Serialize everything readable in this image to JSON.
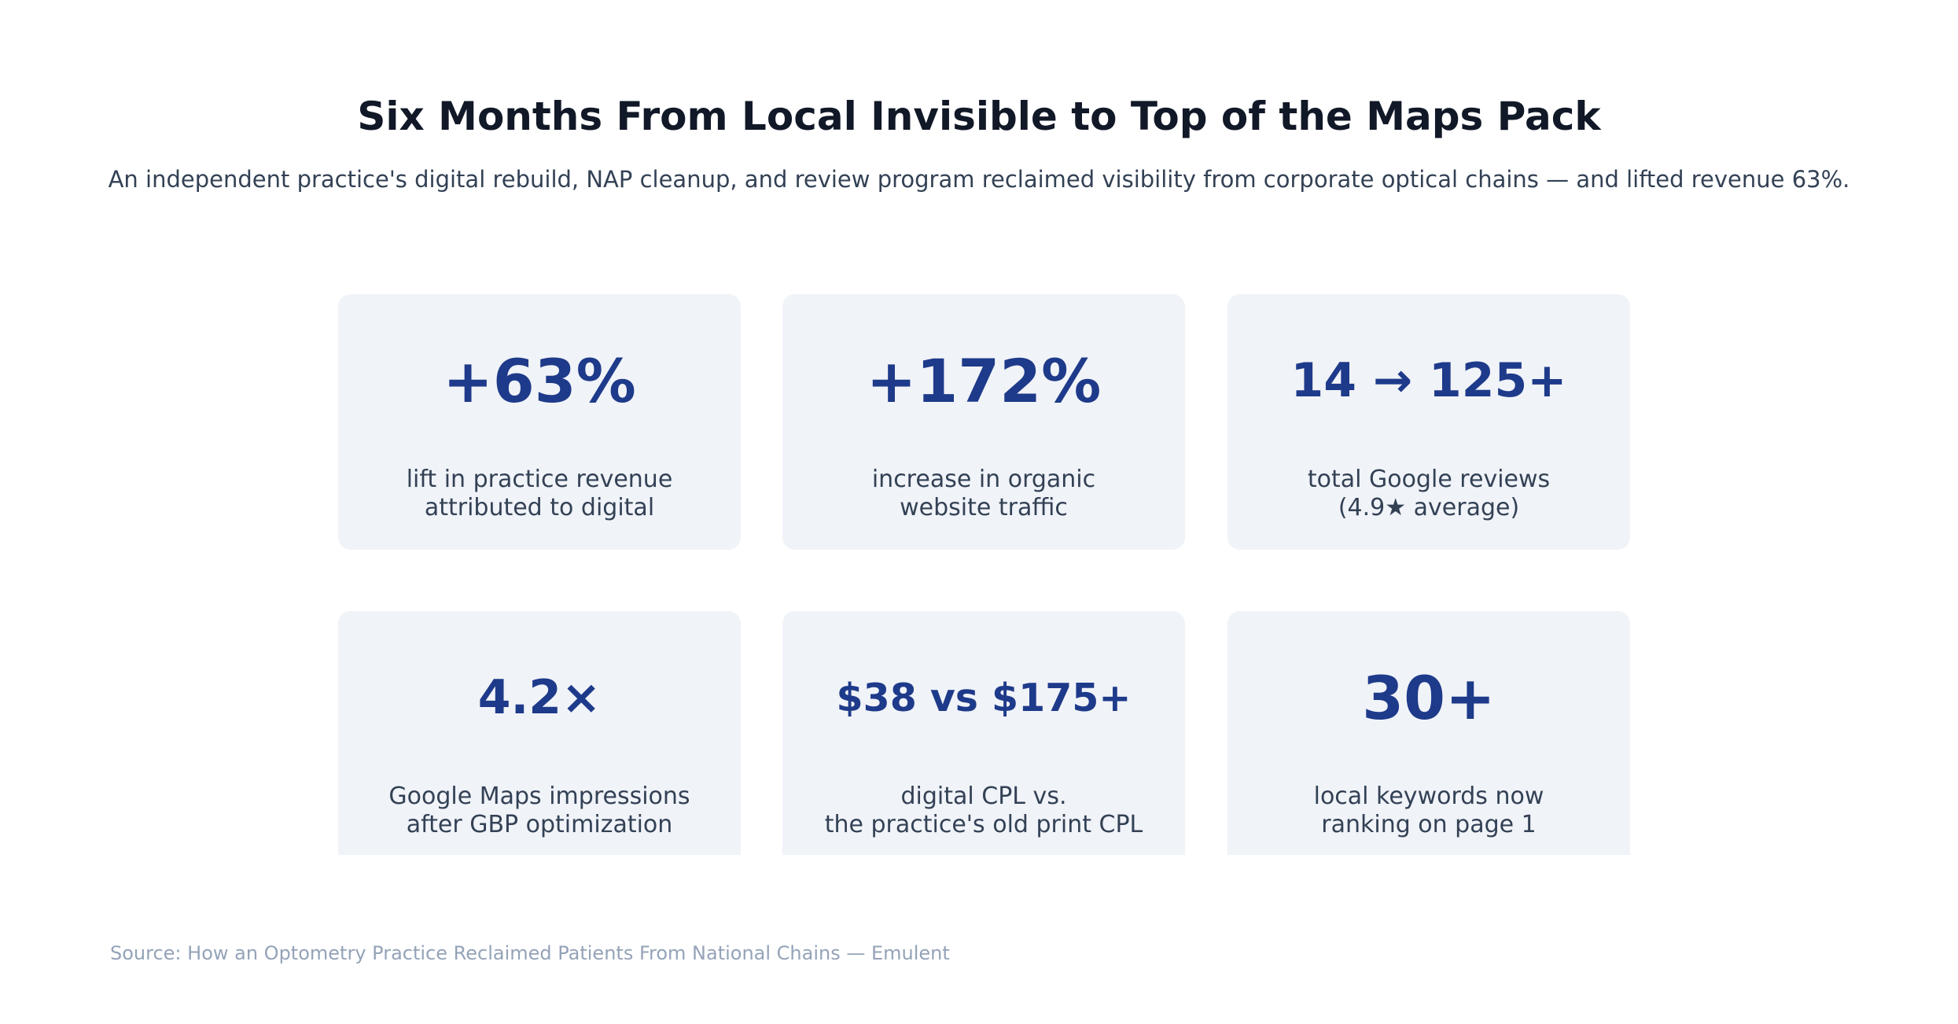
{
  "header": {
    "title": "Six Months From Local Invisible to Top of the Maps Pack",
    "subtitle": "An independent practice's digital rebuild, NAP cleanup, and review program reclaimed visibility from corporate optical chains — and lifted revenue 63%."
  },
  "cards": [
    {
      "metric": "+63%",
      "label_line1": "lift in practice revenue",
      "label_line2": "attributed to digital"
    },
    {
      "metric": "+172%",
      "label_line1": "increase in organic",
      "label_line2": "website traffic"
    },
    {
      "metric": "14 → 125+",
      "label_line1": "total Google reviews",
      "label_line2": "(4.9★ average)"
    },
    {
      "metric": "4.2×",
      "label_line1": "Google Maps impressions",
      "label_line2": "after GBP optimization"
    },
    {
      "metric": "$38 vs $175+",
      "label_line1": "digital CPL vs.",
      "label_line2": "the practice's old print CPL"
    },
    {
      "metric": "30+",
      "label_line1": "local keywords now",
      "label_line2": "ranking on page 1"
    }
  ],
  "footer": {
    "source": "Source: How an Optometry Practice Reclaimed Patients From National Chains — Emulent"
  },
  "colors": {
    "title": "#111827",
    "metric": "#1e3a8a",
    "card_background": "#f0f3f8",
    "label": "#334155",
    "source": "#94a3b8"
  }
}
